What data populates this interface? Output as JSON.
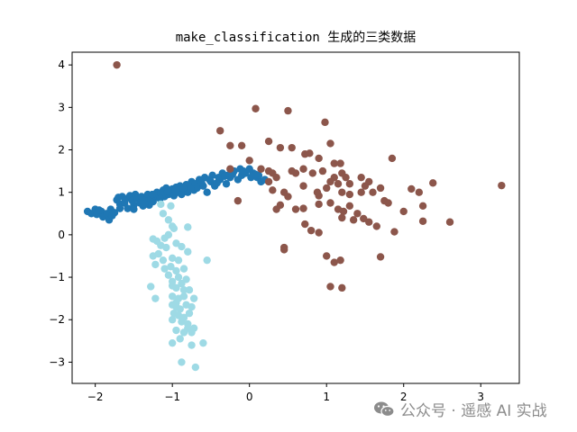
{
  "chart_data": {
    "type": "scatter",
    "title": "make_classification 生成的三类数据",
    "xlabel": "",
    "ylabel": "",
    "xlim": [
      -2.3,
      3.5
    ],
    "ylim": [
      -3.5,
      4.3
    ],
    "xticks": [
      -2,
      -1,
      0,
      1,
      2,
      3
    ],
    "yticks": [
      -3,
      -2,
      -1,
      0,
      1,
      2,
      3,
      4
    ],
    "grid": false,
    "legend": "none",
    "series": [
      {
        "color": "#1f77b4",
        "points": [
          [
            -2.1,
            0.55
          ],
          [
            -2.05,
            0.5
          ],
          [
            -2.0,
            0.6
          ],
          [
            -1.98,
            0.48
          ],
          [
            -1.92,
            0.55
          ],
          [
            -1.9,
            0.42
          ],
          [
            -1.85,
            0.5
          ],
          [
            -1.82,
            0.35
          ],
          [
            -1.8,
            0.6
          ],
          [
            -1.75,
            0.52
          ],
          [
            -1.72,
            0.82
          ],
          [
            -1.7,
            0.88
          ],
          [
            -1.68,
            0.72
          ],
          [
            -1.65,
            0.9
          ],
          [
            -1.62,
            0.75
          ],
          [
            -1.6,
            0.85
          ],
          [
            -1.58,
            0.62
          ],
          [
            -1.55,
            0.92
          ],
          [
            -1.52,
            0.8
          ],
          [
            -1.5,
            0.7
          ],
          [
            -1.48,
            0.95
          ],
          [
            -1.45,
            0.85
          ],
          [
            -1.42,
            0.75
          ],
          [
            -1.4,
            0.9
          ],
          [
            -1.38,
            0.68
          ],
          [
            -1.35,
            0.82
          ],
          [
            -1.32,
            0.95
          ],
          [
            -1.3,
            0.7
          ],
          [
            -1.28,
            0.85
          ],
          [
            -1.25,
            0.78
          ],
          [
            -1.22,
            0.92
          ],
          [
            -1.2,
            1.0
          ],
          [
            -1.18,
            0.88
          ],
          [
            -1.15,
            0.98
          ],
          [
            -1.12,
            1.05
          ],
          [
            -1.1,
            0.9
          ],
          [
            -1.08,
            1.1
          ],
          [
            -1.05,
            0.95
          ],
          [
            -1.02,
            1.0
          ],
          [
            -1.0,
            1.08
          ],
          [
            -0.98,
            0.92
          ],
          [
            -0.95,
            1.12
          ],
          [
            -0.92,
            1.0
          ],
          [
            -0.9,
            1.15
          ],
          [
            -0.88,
            0.95
          ],
          [
            -0.85,
            1.05
          ],
          [
            -0.82,
            1.18
          ],
          [
            -0.8,
            1.0
          ],
          [
            -0.78,
            1.12
          ],
          [
            -0.75,
            1.25
          ],
          [
            -0.72,
            1.05
          ],
          [
            -0.7,
            1.2
          ],
          [
            -0.68,
            1.1
          ],
          [
            -0.65,
            1.3
          ],
          [
            -0.6,
            1.15
          ],
          [
            -0.58,
            1.35
          ],
          [
            -0.55,
            1.0
          ],
          [
            -0.5,
            1.25
          ],
          [
            -0.48,
            1.4
          ],
          [
            -0.45,
            1.15
          ],
          [
            -0.4,
            1.35
          ],
          [
            -0.38,
            1.3
          ],
          [
            -0.35,
            1.45
          ],
          [
            -0.3,
            1.2
          ],
          [
            -0.28,
            1.4
          ],
          [
            -0.25,
            1.35
          ],
          [
            -0.2,
            1.5
          ],
          [
            -0.15,
            1.3
          ],
          [
            -0.12,
            1.55
          ],
          [
            -0.1,
            1.4
          ],
          [
            -0.05,
            1.45
          ],
          [
            0.0,
            1.55
          ],
          [
            0.02,
            1.35
          ],
          [
            0.05,
            1.45
          ],
          [
            0.1,
            1.35
          ],
          [
            0.12,
            1.4
          ],
          [
            0.15,
            1.25
          ],
          [
            0.2,
            1.3
          ],
          [
            -1.95,
            0.58
          ],
          [
            -1.78,
            0.45
          ],
          [
            -1.68,
            0.62
          ],
          [
            -1.5,
            0.6
          ],
          [
            -1.36,
            0.72
          ],
          [
            -1.26,
            0.95
          ],
          [
            -1.16,
            0.85
          ],
          [
            -1.06,
            1.02
          ],
          [
            -0.96,
            1.06
          ],
          [
            -0.86,
            1.1
          ],
          [
            -0.76,
            1.08
          ],
          [
            -0.62,
            1.22
          ],
          [
            -0.52,
            1.3
          ],
          [
            -0.42,
            1.22
          ],
          [
            -0.32,
            1.38
          ],
          [
            -0.22,
            1.42
          ],
          [
            -0.08,
            1.5
          ],
          [
            0.08,
            1.42
          ]
        ]
      },
      {
        "color": "#8c564b",
        "points": [
          [
            -1.72,
            4.0
          ],
          [
            0.08,
            2.97
          ],
          [
            0.5,
            2.92
          ],
          [
            0.98,
            2.65
          ],
          [
            -0.38,
            2.45
          ],
          [
            0.25,
            2.2
          ],
          [
            1.05,
            2.15
          ],
          [
            -0.25,
            2.1
          ],
          [
            -0.1,
            2.1
          ],
          [
            0.4,
            2.05
          ],
          [
            0.55,
            2.05
          ],
          [
            0.72,
            1.9
          ],
          [
            0.78,
            1.92
          ],
          [
            0.9,
            1.8
          ],
          [
            1.1,
            1.68
          ],
          [
            1.18,
            1.68
          ],
          [
            1.85,
            1.8
          ],
          [
            -0.25,
            1.55
          ],
          [
            0.0,
            1.75
          ],
          [
            0.15,
            1.55
          ],
          [
            0.25,
            1.5
          ],
          [
            0.3,
            1.45
          ],
          [
            0.35,
            1.35
          ],
          [
            0.55,
            1.5
          ],
          [
            0.6,
            1.45
          ],
          [
            0.7,
            1.55
          ],
          [
            0.82,
            1.45
          ],
          [
            0.95,
            1.5
          ],
          [
            1.1,
            1.35
          ],
          [
            1.2,
            1.45
          ],
          [
            1.25,
            1.35
          ],
          [
            1.05,
            1.25
          ],
          [
            1.15,
            1.2
          ],
          [
            1.3,
            1.2
          ],
          [
            1.45,
            1.35
          ],
          [
            1.5,
            1.15
          ],
          [
            1.55,
            1.25
          ],
          [
            1.7,
            1.1
          ],
          [
            2.2,
            1.0
          ],
          [
            2.38,
            1.22
          ],
          [
            2.1,
            1.08
          ],
          [
            3.27,
            1.16
          ],
          [
            0.25,
            1.25
          ],
          [
            0.3,
            1.05
          ],
          [
            0.45,
            1.0
          ],
          [
            0.5,
            0.9
          ],
          [
            0.7,
            1.15
          ],
          [
            0.88,
            1.0
          ],
          [
            0.9,
            0.92
          ],
          [
            1.0,
            1.1
          ],
          [
            1.2,
            1.0
          ],
          [
            1.3,
            0.95
          ],
          [
            1.45,
            1.0
          ],
          [
            1.6,
            1.0
          ],
          [
            1.75,
            0.8
          ],
          [
            1.8,
            0.75
          ],
          [
            -0.15,
            0.8
          ],
          [
            0.35,
            0.6
          ],
          [
            0.4,
            0.7
          ],
          [
            0.6,
            0.6
          ],
          [
            0.7,
            0.62
          ],
          [
            0.9,
            0.72
          ],
          [
            1.05,
            0.75
          ],
          [
            1.15,
            0.6
          ],
          [
            1.22,
            0.55
          ],
          [
            1.3,
            0.68
          ],
          [
            1.4,
            0.5
          ],
          [
            1.55,
            0.3
          ],
          [
            1.65,
            0.2
          ],
          [
            2.0,
            0.55
          ],
          [
            2.25,
            0.68
          ],
          [
            2.25,
            0.32
          ],
          [
            2.6,
            0.3
          ],
          [
            1.88,
            0.07
          ],
          [
            0.72,
            0.25
          ],
          [
            0.8,
            0.1
          ],
          [
            0.9,
            0.05
          ],
          [
            1.35,
            0.35
          ],
          [
            1.48,
            0.38
          ],
          [
            1.2,
            0.4
          ],
          [
            0.45,
            -0.3
          ],
          [
            0.45,
            -0.35
          ],
          [
            1.0,
            -0.5
          ],
          [
            1.1,
            -0.65
          ],
          [
            1.18,
            -0.6
          ],
          [
            1.7,
            -0.52
          ],
          [
            1.05,
            -1.22
          ],
          [
            1.2,
            -1.25
          ]
        ]
      },
      {
        "color": "#9edae5",
        "points": [
          [
            -1.15,
            0.72
          ],
          [
            -1.02,
            0.68
          ],
          [
            -1.12,
            0.5
          ],
          [
            -1.05,
            0.35
          ],
          [
            -1.0,
            0.2
          ],
          [
            -0.98,
            0.15
          ],
          [
            -0.8,
            0.18
          ],
          [
            -1.25,
            -0.1
          ],
          [
            -1.2,
            -0.15
          ],
          [
            -1.1,
            -0.08
          ],
          [
            -1.05,
            0.0
          ],
          [
            -1.15,
            -0.25
          ],
          [
            -1.08,
            -0.3
          ],
          [
            -0.95,
            -0.2
          ],
          [
            -0.88,
            -0.28
          ],
          [
            -1.25,
            -0.5
          ],
          [
            -1.18,
            -0.45
          ],
          [
            -1.0,
            -0.55
          ],
          [
            -0.92,
            -0.6
          ],
          [
            -0.55,
            -0.6
          ],
          [
            -1.22,
            -0.7
          ],
          [
            -1.1,
            -0.8
          ],
          [
            -1.02,
            -0.75
          ],
          [
            -0.95,
            -0.85
          ],
          [
            -0.85,
            -0.8
          ],
          [
            -1.05,
            -0.95
          ],
          [
            -0.92,
            -1.0
          ],
          [
            -0.82,
            -1.05
          ],
          [
            -1.28,
            -1.22
          ],
          [
            -1.0,
            -1.2
          ],
          [
            -0.95,
            -1.25
          ],
          [
            -0.88,
            -1.15
          ],
          [
            -0.78,
            -1.3
          ],
          [
            -1.22,
            -1.5
          ],
          [
            -1.0,
            -1.45
          ],
          [
            -0.92,
            -1.5
          ],
          [
            -0.85,
            -1.45
          ],
          [
            -0.72,
            -1.5
          ],
          [
            -1.0,
            -1.65
          ],
          [
            -0.95,
            -1.7
          ],
          [
            -0.9,
            -1.75
          ],
          [
            -0.82,
            -1.65
          ],
          [
            -0.75,
            -1.7
          ],
          [
            -0.98,
            -1.85
          ],
          [
            -0.92,
            -1.9
          ],
          [
            -0.85,
            -1.95
          ],
          [
            -0.78,
            -1.85
          ],
          [
            -1.0,
            -2.0
          ],
          [
            -0.88,
            -2.05
          ],
          [
            -0.8,
            -2.1
          ],
          [
            -0.72,
            -2.2
          ],
          [
            -0.95,
            -2.25
          ],
          [
            -0.85,
            -2.3
          ],
          [
            -0.75,
            -2.3
          ],
          [
            -0.9,
            -2.45
          ],
          [
            -1.0,
            -2.55
          ],
          [
            -0.75,
            -2.6
          ],
          [
            -0.6,
            -2.55
          ],
          [
            -0.88,
            -3.0
          ],
          [
            -0.7,
            -3.12
          ],
          [
            -0.8,
            -2.2
          ],
          [
            -0.95,
            -1.6
          ],
          [
            -0.85,
            -1.3
          ],
          [
            -1.12,
            -0.6
          ],
          [
            -0.8,
            -0.4
          ],
          [
            -1.0,
            -1.1
          ]
        ]
      }
    ]
  },
  "watermark": {
    "text": "公众号 · 遥感 AI 实战",
    "icon": "wechat-icon"
  }
}
